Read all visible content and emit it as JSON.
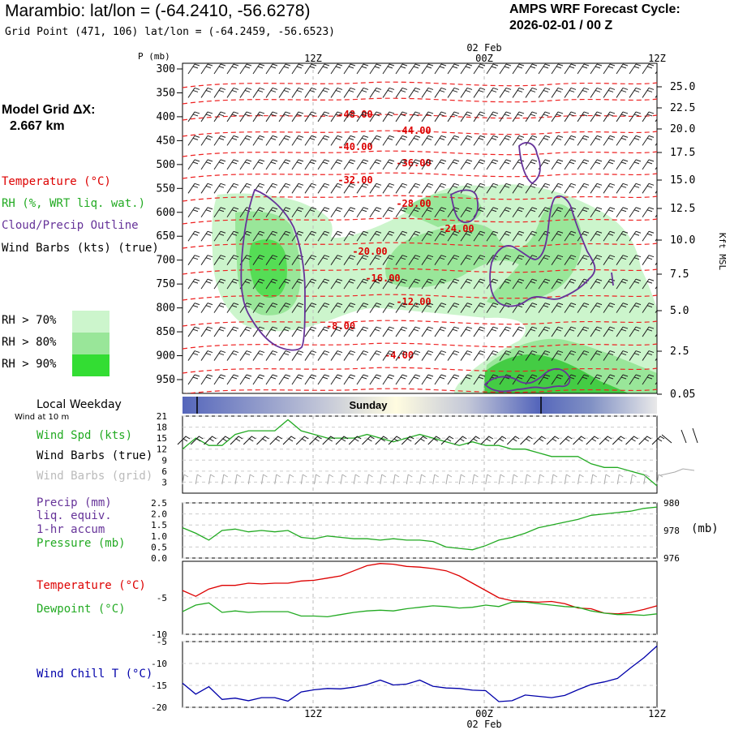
{
  "header": {
    "title": "Marambio:  lat/lon = (-64.2410, -56.6278)",
    "grid_point": "Grid Point (471, 106) lat/lon = (-64.2459, -56.6523)",
    "cycle_line1": "AMPS WRF Forecast Cycle:",
    "cycle_line2": "2026-02-01 / 00  Z"
  },
  "left_panel": {
    "model_grid_label": "Model Grid ΔX:",
    "model_grid_value": "2.667 km",
    "legend_temperature": "Temperature (°C)",
    "legend_rh": "RH (%, WRT liq. wat.)",
    "legend_cloud": "Cloud/Precip Outline",
    "legend_wind": "Wind Barbs (kts) (true)",
    "rh_thresholds": [
      "RH > 70%",
      "RH > 80%",
      "RH > 90%"
    ],
    "local_weekday": "Local Weekday",
    "wind_at_10m": "Wind at 10 m",
    "wind_spd": "Wind Spd (kts)",
    "wind_barbs_true": "Wind Barbs (true)",
    "wind_barbs_grid": "Wind Barbs (grid)",
    "precip_1": "Precip (mm)",
    "precip_2": "liq. equiv.",
    "precip_3": "1-hr accum",
    "pressure": "Pressure (mb)",
    "temperature": "Temperature (°C)",
    "dewpoint": "Dewpoint (°C)",
    "wind_chill": "Wind Chill T (°C)"
  },
  "colors": {
    "temperature": "#dd0000",
    "rh": "#22aa22",
    "cloud": "#663399",
    "wind_chill": "#0000aa",
    "rh70": "#ccf5cc",
    "rh80": "#99e699",
    "rh90": "#33dd33",
    "grey_barbs": "#aaaaaa",
    "day_band": "#5566bb"
  },
  "chart_data": [
    {
      "type": "heatmap",
      "panel": "cross-section",
      "ylabel": "P (mb)",
      "ylabel_right": "Kft MSL",
      "pressure_ticks": [
        300,
        350,
        400,
        450,
        500,
        550,
        600,
        650,
        700,
        750,
        800,
        850,
        900,
        950
      ],
      "height_ticks": [
        "25.0",
        "22.5",
        "20.0",
        "17.5",
        "15.0",
        "12.5",
        "10.0",
        "7.5",
        "5.0",
        "2.5",
        "0.05"
      ],
      "time_top": [
        "12Z",
        "00Z",
        "12Z"
      ],
      "date_top": "02 Feb",
      "temperature_labels": [
        "-48.00",
        "-44.00",
        "-40.00",
        "-36.00",
        "-32.00",
        "-28.00",
        "-24.00",
        "-20.00",
        "-16.00",
        "-12.00",
        "-8.00",
        "-4.00"
      ],
      "day_label": "Sunday"
    },
    {
      "type": "line",
      "panel": "wind speed",
      "ylim": [
        0,
        21
      ],
      "yticks": [
        21,
        18,
        15,
        12,
        9,
        6,
        3
      ],
      "x_hours": [
        0,
        1,
        2,
        3,
        4,
        5,
        6,
        7,
        8,
        9,
        10,
        11,
        12,
        13,
        14,
        15,
        16,
        17,
        18,
        19,
        20,
        21,
        22,
        23,
        24,
        25,
        26,
        27,
        28,
        29,
        30,
        31,
        32,
        33,
        34,
        35,
        36
      ],
      "series": [
        {
          "name": "Wind Spd (kts)",
          "values": [
            12,
            15,
            13,
            13,
            16,
            17,
            17,
            17,
            20,
            17,
            16,
            15,
            15,
            15,
            16,
            15,
            14,
            15,
            16,
            15,
            14,
            13,
            14,
            13,
            13,
            12,
            12,
            11,
            10,
            10,
            10,
            8,
            7,
            7,
            6,
            5,
            2
          ]
        }
      ]
    },
    {
      "type": "line",
      "panel": "precip / pressure",
      "ylim": [
        0,
        2.5
      ],
      "yticks": [
        "2.5",
        "2.0",
        "1.5",
        "1.0",
        "0.5",
        "0.0"
      ],
      "ylim_right": [
        976,
        980
      ],
      "yticks_right": [
        "980",
        "978",
        "976"
      ],
      "ylabel_right": "(mb)",
      "x_hours": [
        0,
        1,
        2,
        3,
        4,
        5,
        6,
        7,
        8,
        9,
        10,
        11,
        12,
        13,
        14,
        15,
        16,
        17,
        18,
        19,
        20,
        21,
        22,
        23,
        24,
        25,
        26,
        27,
        28,
        29,
        30,
        31,
        32,
        33,
        34,
        35,
        36
      ],
      "series": [
        {
          "name": "Pressure (mb)",
          "values": [
            978.2,
            977.8,
            977.3,
            978.0,
            978.1,
            977.9,
            978.0,
            977.9,
            978.0,
            977.5,
            977.4,
            977.6,
            977.5,
            977.4,
            977.4,
            977.3,
            977.4,
            977.3,
            977.3,
            977.2,
            976.8,
            976.7,
            976.6,
            976.9,
            977.3,
            977.5,
            977.8,
            978.2,
            978.4,
            978.6,
            978.8,
            979.1,
            979.2,
            979.3,
            979.4,
            979.6,
            979.7
          ]
        }
      ]
    },
    {
      "type": "line",
      "panel": "temperature / dewpoint",
      "ylim": [
        -10,
        0
      ],
      "yticks": [
        "-5",
        "-10"
      ],
      "x_hours": [
        0,
        1,
        2,
        3,
        4,
        5,
        6,
        7,
        8,
        9,
        10,
        11,
        12,
        13,
        14,
        15,
        16,
        17,
        18,
        19,
        20,
        21,
        22,
        23,
        24,
        25,
        26,
        27,
        28,
        29,
        30,
        31,
        32,
        33,
        34,
        35,
        36
      ],
      "series": [
        {
          "name": "Temperature (°C)",
          "values": [
            -4.0,
            -4.8,
            -3.8,
            -3.3,
            -3.3,
            -3.0,
            -3.1,
            -3.0,
            -3.0,
            -2.7,
            -2.6,
            -2.3,
            -2.0,
            -1.3,
            -0.6,
            -0.3,
            -0.4,
            -0.7,
            -0.8,
            -1.0,
            -1.3,
            -2.0,
            -3.0,
            -4.0,
            -5.0,
            -5.4,
            -5.5,
            -5.6,
            -5.5,
            -5.8,
            -6.4,
            -6.5,
            -7.1,
            -7.2,
            -7.0,
            -6.6,
            -6.1
          ]
        },
        {
          "name": "Dewpoint (°C)",
          "values": [
            -6.9,
            -6.0,
            -5.7,
            -7.0,
            -6.8,
            -7.0,
            -6.9,
            -6.9,
            -6.9,
            -7.5,
            -7.5,
            -7.6,
            -7.3,
            -7.0,
            -6.8,
            -6.7,
            -6.8,
            -6.5,
            -6.3,
            -6.1,
            -6.2,
            -6.4,
            -6.3,
            -6.0,
            -6.2,
            -5.6,
            -5.6,
            -5.8,
            -6.0,
            -6.2,
            -6.3,
            -6.8,
            -7.1,
            -7.3,
            -7.3,
            -7.4,
            -7.2
          ]
        }
      ]
    },
    {
      "type": "line",
      "panel": "wind chill",
      "ylim": [
        -20,
        -5
      ],
      "yticks": [
        "-5",
        "-10",
        "-15",
        "-20"
      ],
      "x_hours": [
        0,
        1,
        2,
        3,
        4,
        5,
        6,
        7,
        8,
        9,
        10,
        11,
        12,
        13,
        14,
        15,
        16,
        17,
        18,
        19,
        20,
        21,
        22,
        23,
        24,
        25,
        26,
        27,
        28,
        29,
        30,
        31,
        32,
        33,
        34,
        35,
        36
      ],
      "series": [
        {
          "name": "Wind Chill T (°C)",
          "values": [
            -14.5,
            -17.0,
            -15.3,
            -18.2,
            -17.9,
            -18.5,
            -17.8,
            -17.8,
            -18.6,
            -16.5,
            -16.0,
            -15.7,
            -15.8,
            -15.4,
            -14.8,
            -13.8,
            -14.9,
            -14.7,
            -13.8,
            -15.2,
            -15.6,
            -15.7,
            -16.1,
            -16.2,
            -18.7,
            -18.5,
            -17.2,
            -17.5,
            -17.8,
            -17.3,
            -16.0,
            -14.8,
            -14.2,
            -13.4,
            -11.0,
            -8.7,
            -6.0
          ]
        }
      ],
      "xticks": [
        "12Z",
        "00Z",
        "12Z"
      ],
      "date_bottom": "02 Feb"
    }
  ]
}
